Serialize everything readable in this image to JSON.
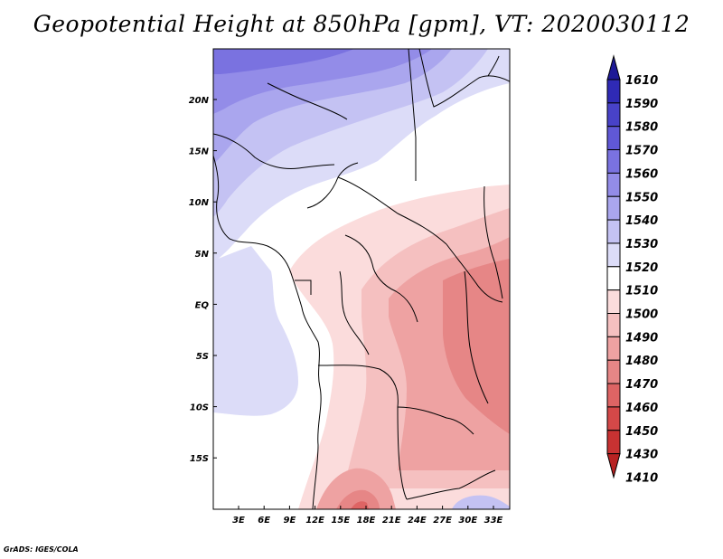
{
  "title": "Geopotential Height at 850hPa [gpm], VT: 2020030112",
  "footer": "GrADS: IGES/COLA",
  "map": {
    "lat_labels": [
      "20N",
      "15N",
      "10N",
      "5N",
      "EQ",
      "5S",
      "10S",
      "15S"
    ],
    "lon_labels": [
      "3E",
      "6E",
      "9E",
      "12E",
      "15E",
      "18E",
      "21E",
      "24E",
      "27E",
      "30E",
      "33E"
    ],
    "lat_range": [
      -20,
      25
    ],
    "lon_range": [
      0,
      35
    ],
    "variable": "Geopotential Height at 850hPa",
    "units": "gpm",
    "valid_time": "2020030112"
  },
  "colorbar": {
    "levels": [
      "1610",
      "1590",
      "1580",
      "1570",
      "1560",
      "1550",
      "1540",
      "1530",
      "1520",
      "1510",
      "1500",
      "1490",
      "1480",
      "1470",
      "1460",
      "1450",
      "1430",
      "1410"
    ],
    "colors": [
      "#1e1a96",
      "#2f2ab5",
      "#4842c8",
      "#6058d6",
      "#7a72e0",
      "#938ce8",
      "#aaa6ee",
      "#c4c2f3",
      "#dcdcf8",
      "#ffffff",
      "#fbdcdc",
      "#f5c0c0",
      "#eea2a2",
      "#e68686",
      "#de6464",
      "#d44848",
      "#c83232",
      "#b82222"
    ]
  }
}
